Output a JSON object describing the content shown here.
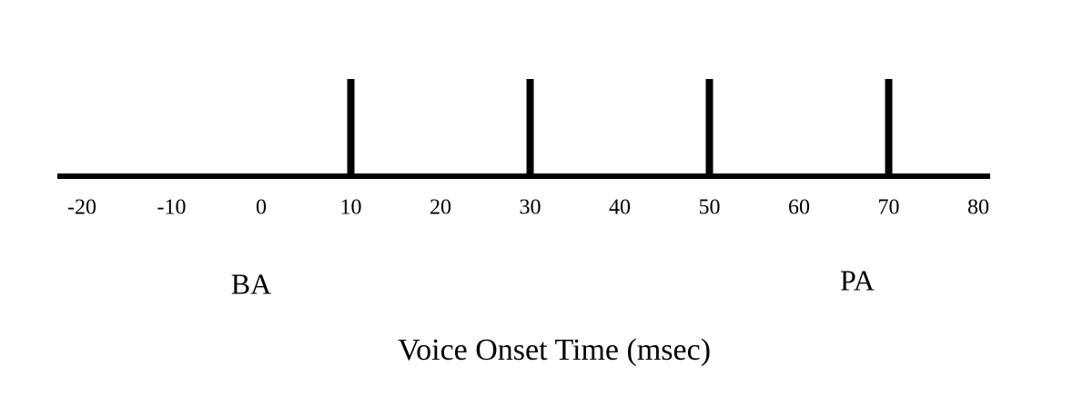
{
  "axis": {
    "label": "Voice Onset Time (msec)",
    "xlim": [
      -20,
      80
    ],
    "xticks": [
      -20,
      -10,
      0,
      10,
      20,
      30,
      40,
      50,
      60,
      70,
      80
    ]
  },
  "markers": [
    10,
    30,
    50,
    70
  ],
  "annotations": [
    "BA",
    "PA"
  ]
}
